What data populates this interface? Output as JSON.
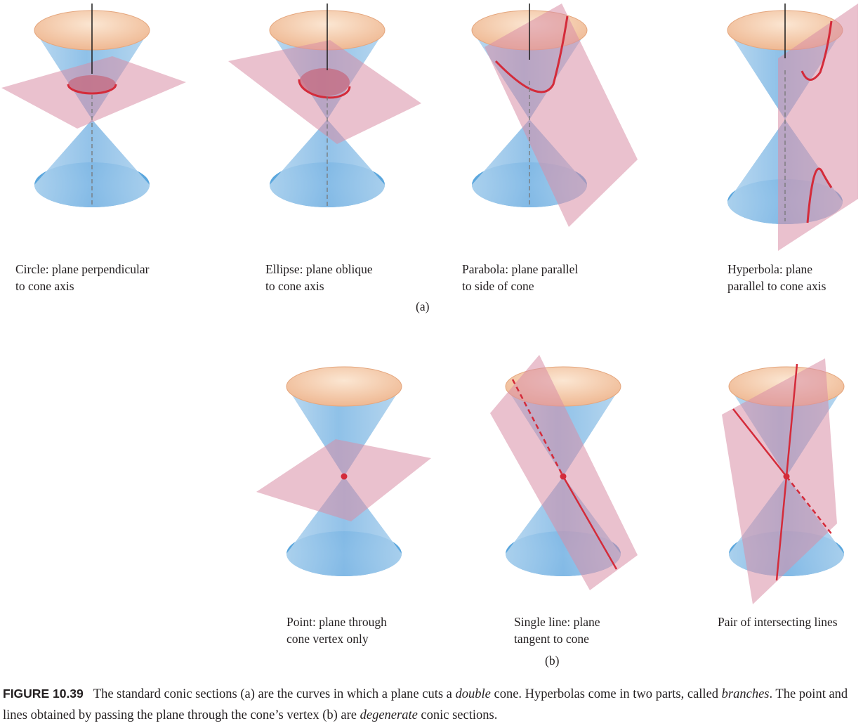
{
  "part_a": {
    "label": "(a)",
    "panels": [
      {
        "name": "circle",
        "line1": "Circle: plane perpendicular",
        "line2": "to cone axis"
      },
      {
        "name": "ellipse",
        "line1": "Ellipse: plane oblique",
        "line2": "to cone axis"
      },
      {
        "name": "parabola",
        "line1": "Parabola: plane parallel",
        "line2": "to side of cone"
      },
      {
        "name": "hyperbola",
        "line1": "Hyperbola: plane",
        "line2": "parallel to cone axis"
      }
    ]
  },
  "part_b": {
    "label": "(b)",
    "panels": [
      {
        "name": "point",
        "line1": "Point: plane through",
        "line2": "cone vertex only"
      },
      {
        "name": "single-line",
        "line1": "Single line: plane",
        "line2": "tangent to cone"
      },
      {
        "name": "line-pair",
        "line1": "Pair of intersecting lines",
        "line2": ""
      }
    ]
  },
  "figure_caption": {
    "number": "FIGURE 10.39",
    "s1": "The standard conic sections (a) are the curves in which a plane cuts a ",
    "e1": "double",
    "s2": " cone. Hyperbolas come in two parts, called ",
    "e2": "branches",
    "s3": ". The point and lines obtained by passing the plane through the cone’s vertex (b) are ",
    "e3": "degenerate",
    "s4": " conic sections."
  },
  "colors": {
    "cone_body": "#a9cde9",
    "cone_top": "#f3c6a3",
    "cone_bottom": "#6fb0e2",
    "plane": "#d98ea6",
    "section_curve": "#d42b3a",
    "axis": "#1a1a1a"
  }
}
